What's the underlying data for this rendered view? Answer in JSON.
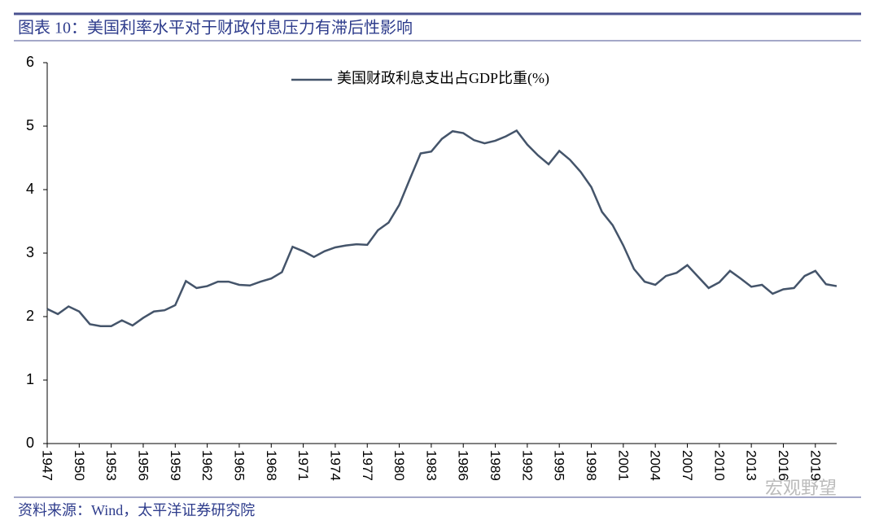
{
  "header": {
    "title": "图表 10：美国利率水平对于财政付息压力有滞后性影响"
  },
  "chart_data": {
    "type": "line",
    "x": [
      1947,
      1948,
      1949,
      1950,
      1951,
      1952,
      1953,
      1954,
      1955,
      1956,
      1957,
      1958,
      1959,
      1960,
      1961,
      1962,
      1963,
      1964,
      1965,
      1966,
      1967,
      1968,
      1969,
      1970,
      1971,
      1972,
      1973,
      1974,
      1975,
      1976,
      1977,
      1978,
      1979,
      1980,
      1981,
      1982,
      1983,
      1984,
      1985,
      1986,
      1987,
      1988,
      1989,
      1990,
      1991,
      1992,
      1993,
      1994,
      1995,
      1996,
      1997,
      1998,
      1999,
      2000,
      2001,
      2002,
      2003,
      2004,
      2005,
      2006,
      2007,
      2008,
      2009,
      2010,
      2011,
      2012,
      2013,
      2014,
      2015,
      2016,
      2017,
      2018,
      2019,
      2020,
      2021
    ],
    "series": [
      {
        "name": "美国财政利息支出占GDP比重(%)",
        "color": "#44546a",
        "values": [
          2.12,
          2.04,
          2.16,
          2.08,
          1.88,
          1.85,
          1.85,
          1.94,
          1.86,
          1.98,
          2.08,
          2.1,
          2.18,
          2.56,
          2.45,
          2.48,
          2.55,
          2.55,
          2.5,
          2.49,
          2.55,
          2.6,
          2.7,
          3.1,
          3.03,
          2.94,
          3.03,
          3.09,
          3.12,
          3.14,
          3.13,
          3.36,
          3.48,
          3.76,
          4.17,
          4.57,
          4.6,
          4.8,
          4.92,
          4.89,
          4.78,
          4.73,
          4.77,
          4.84,
          4.93,
          4.71,
          4.54,
          4.4,
          4.61,
          4.47,
          4.28,
          4.04,
          3.65,
          3.44,
          3.12,
          2.75,
          2.55,
          2.5,
          2.64,
          2.69,
          2.81,
          2.63,
          2.45,
          2.54,
          2.72,
          2.6,
          2.47,
          2.5,
          2.36,
          2.43,
          2.45,
          2.64,
          2.72,
          2.51,
          2.48
        ]
      }
    ],
    "xlim": [
      1947,
      2021
    ],
    "xticks": [
      1947,
      1950,
      1953,
      1956,
      1959,
      1962,
      1965,
      1968,
      1971,
      1974,
      1977,
      1980,
      1983,
      1986,
      1989,
      1992,
      1995,
      1998,
      2001,
      2004,
      2007,
      2010,
      2013,
      2016,
      2019
    ],
    "ylim": [
      0,
      6
    ],
    "yticks": [
      0,
      1,
      2,
      3,
      4,
      5,
      6
    ],
    "legend": "top"
  },
  "footer": {
    "source": "资料来源：Wind，太平洋证券研究院",
    "watermark": "宏观野望"
  }
}
